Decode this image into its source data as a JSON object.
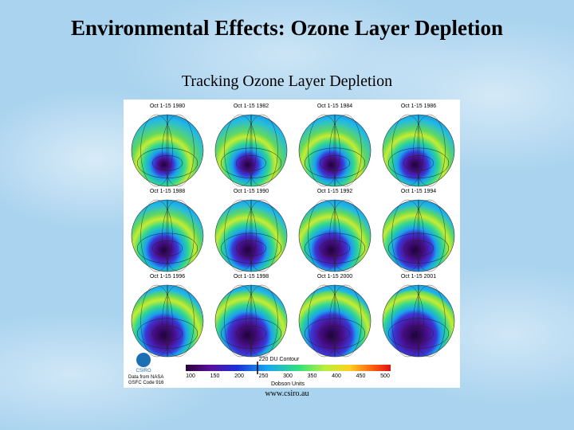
{
  "slide": {
    "title": "Environmental Effects: Ozone Layer Depletion",
    "subtitle": "Tracking Ozone Layer Depletion",
    "figure": {
      "panels": [
        {
          "label": "Oct 1-15 1980"
        },
        {
          "label": "Oct 1-15 1982"
        },
        {
          "label": "Oct 1-15 1984"
        },
        {
          "label": "Oct 1-15 1986"
        },
        {
          "label": "Oct 1-15 1988"
        },
        {
          "label": "Oct 1-15 1990"
        },
        {
          "label": "Oct 1-15 1992"
        },
        {
          "label": "Oct 1-15 1994"
        },
        {
          "label": "Oct 1-15 1996"
        },
        {
          "label": "Oct 1-15 1998"
        },
        {
          "label": "Oct 1-15 2000"
        },
        {
          "label": "Oct 1-15 2001"
        }
      ],
      "contour_label": "220 DU Contour",
      "scale_ticks": [
        100,
        150,
        200,
        250,
        300,
        350,
        400,
        450,
        500
      ],
      "scale_title": "Dobson Units",
      "logo": "CSIRO",
      "credit": [
        "Data from NASA",
        "GSFC Code 916"
      ]
    },
    "source": "www.csiro.au"
  }
}
